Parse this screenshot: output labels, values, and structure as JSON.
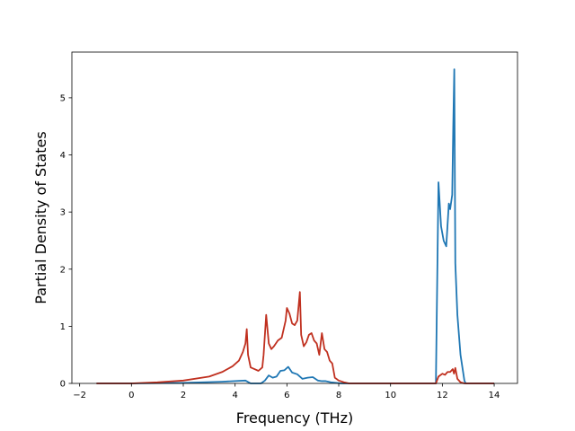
{
  "chart_data": {
    "type": "line",
    "title": "",
    "xlabel": "Frequency (THz)",
    "ylabel": "Partial Density of States",
    "xlim": [
      -2.3,
      14.9
    ],
    "ylim": [
      0,
      5.8
    ],
    "xticks": [
      -2,
      0,
      2,
      4,
      6,
      8,
      10,
      12,
      14
    ],
    "yticks": [
      0,
      1,
      2,
      3,
      4,
      5
    ],
    "grid": false,
    "legend": "none",
    "series": [
      {
        "color": "#1f77b4",
        "x": [
          -1.35,
          0.0,
          2.0,
          3.5,
          4.4,
          4.6,
          5.0,
          5.15,
          5.3,
          5.45,
          5.6,
          5.75,
          5.9,
          6.05,
          6.2,
          6.4,
          6.6,
          6.8,
          7.0,
          7.2,
          7.35,
          7.5,
          7.7,
          7.9,
          8.1,
          8.3,
          9.0,
          10.0,
          11.0,
          11.75,
          11.85,
          11.95,
          12.05,
          12.15,
          12.25,
          12.3,
          12.38,
          12.42,
          12.46,
          12.5,
          12.58,
          12.7,
          12.85,
          12.9,
          13.0,
          14.0
        ],
        "y": [
          0.0,
          0.0,
          0.01,
          0.03,
          0.05,
          0.0,
          0.0,
          0.05,
          0.14,
          0.1,
          0.12,
          0.22,
          0.23,
          0.29,
          0.19,
          0.16,
          0.08,
          0.1,
          0.11,
          0.05,
          0.04,
          0.04,
          0.02,
          0.01,
          0.0,
          0.0,
          0.0,
          0.0,
          0.0,
          0.0,
          3.52,
          2.75,
          2.5,
          2.4,
          3.15,
          3.05,
          3.3,
          4.5,
          5.5,
          2.1,
          1.2,
          0.5,
          0.05,
          0.0,
          0.0,
          0.0
        ]
      },
      {
        "color": "#c0301f",
        "x": [
          -1.35,
          0.0,
          1.0,
          2.0,
          3.0,
          3.5,
          3.9,
          4.15,
          4.3,
          4.4,
          4.45,
          4.5,
          4.6,
          4.75,
          4.9,
          5.05,
          5.1,
          5.2,
          5.3,
          5.4,
          5.5,
          5.65,
          5.8,
          5.95,
          6.0,
          6.1,
          6.2,
          6.3,
          6.4,
          6.5,
          6.55,
          6.65,
          6.75,
          6.85,
          6.95,
          7.05,
          7.15,
          7.25,
          7.35,
          7.45,
          7.55,
          7.65,
          7.75,
          7.85,
          8.0,
          8.2,
          8.4,
          8.6,
          9.0,
          10.0,
          11.0,
          11.75,
          11.85,
          12.0,
          12.1,
          12.2,
          12.3,
          12.4,
          12.45,
          12.5,
          12.58,
          12.7,
          12.85,
          13.0,
          14.0
        ],
        "y": [
          0.0,
          0.0,
          0.02,
          0.05,
          0.12,
          0.2,
          0.3,
          0.4,
          0.55,
          0.7,
          0.95,
          0.5,
          0.28,
          0.25,
          0.22,
          0.28,
          0.5,
          1.2,
          0.7,
          0.6,
          0.65,
          0.75,
          0.8,
          1.1,
          1.32,
          1.22,
          1.05,
          1.02,
          1.1,
          1.6,
          0.85,
          0.65,
          0.72,
          0.85,
          0.88,
          0.75,
          0.7,
          0.5,
          0.88,
          0.6,
          0.55,
          0.4,
          0.35,
          0.1,
          0.05,
          0.02,
          0.0,
          0.0,
          0.0,
          0.0,
          0.0,
          0.0,
          0.12,
          0.17,
          0.15,
          0.2,
          0.2,
          0.25,
          0.17,
          0.27,
          0.08,
          0.02,
          0.0,
          0.0,
          0.0
        ]
      }
    ]
  }
}
